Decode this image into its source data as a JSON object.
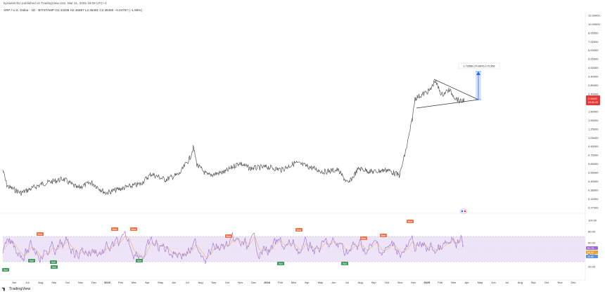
{
  "header": {
    "published": "kyivakolchin published on TradingView.com, Mar 21, 2025 16:09 UTC+1",
    "symbol_line": "XRP / U.S. Dollar · 1D · BITSTAMP  O2.43336  H2.46697  L2.35481  C2.38490  −0.04757 (−1.96%)"
  },
  "price_axis": {
    "labels": [
      "12.00000",
      "10.00000",
      "8.00000",
      "7.00000",
      "6.00000",
      "5.00000",
      "4.00000",
      "3.40000",
      "2.80000",
      "2.40000",
      "2.00000",
      "1.80000",
      "1.50000",
      "1.25000",
      "1.05000",
      "0.90000",
      "0.75000",
      "0.65000",
      "0.55000",
      "0.45000",
      "0.38000",
      "0.32000",
      "0.27000"
    ],
    "current_price": "2.38490",
    "current_countdown": "09:50:45"
  },
  "rsi_axis": {
    "labels": [
      "100.00",
      "80.00",
      "60.00",
      "40.00",
      "20.00"
    ],
    "rsi_value": "51.78",
    "rsi_ma_value": "50.91",
    "rsi_third_value": "43.82"
  },
  "measure_label": "1.72556 (74.69%) 172,556",
  "time_axis": [
    "Jun",
    "Jul",
    "Aug",
    "Sep",
    "Oct",
    "Nov",
    "Dec",
    "2023",
    "Feb",
    "Mar",
    "Apr",
    "May",
    "Jun",
    "Jul",
    "Aug",
    "Sep",
    "Oct",
    "Nov",
    "Dec",
    "2024",
    "Feb",
    "Mar",
    "Apr",
    "May",
    "Jun",
    "Jul",
    "Aug",
    "Sep",
    "Oct",
    "Nov",
    "Dec",
    "2025",
    "Feb",
    "Mar",
    "Apr",
    "May",
    "Jun",
    "Jul",
    "Aug",
    "Sep",
    "Oct",
    "Nov",
    "Dec"
  ],
  "signals": {
    "bear": "Bear",
    "bull": "Bull"
  },
  "footer": {
    "brand": "TradingView"
  },
  "colors": {
    "price_line": "#555555",
    "rsi_line": "#9c6cd6",
    "rsi_ma": "#f0a030",
    "rsi_band": "#ede4f7",
    "bear": "#f06f45",
    "bull": "#3e9a5a",
    "measure": "#2962ff",
    "triangle": "#333333",
    "price_tag": "#e53935"
  }
}
